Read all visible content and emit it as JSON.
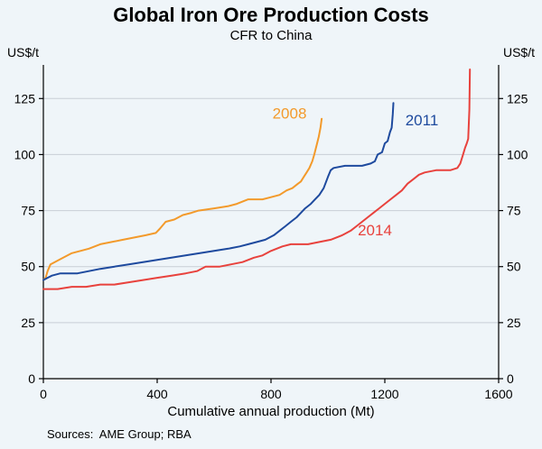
{
  "title": "Global Iron Ore Production Costs",
  "subtitle": "CFR to China",
  "y_axis": {
    "left_unit": "US$/t",
    "right_unit": "US$/t"
  },
  "footer": {
    "sources": "Sources:  AME Group; RBA"
  },
  "chart_data": {
    "type": "line",
    "title": "Global Iron Ore Production Costs",
    "subtitle": "CFR to China",
    "xlabel": "Cumulative annual production (Mt)",
    "ylabel": "US$/t",
    "xlim": [
      0,
      1600
    ],
    "ylim": [
      0,
      140
    ],
    "x_ticks": [
      0,
      400,
      800,
      1200,
      1600
    ],
    "y_ticks": [
      0,
      25,
      50,
      75,
      100,
      125
    ],
    "grid": "horizontal",
    "legend_position": "inline-labels",
    "colors": {
      "background": "#eff5f9",
      "grid": "#c8ced6",
      "axis": "#000000",
      "tick_text": "#000000"
    },
    "series": [
      {
        "name": "2008",
        "color": "#f39a2b",
        "label_pos": [
          865,
          116
        ],
        "points": [
          [
            0,
            44
          ],
          [
            8,
            45
          ],
          [
            15,
            48
          ],
          [
            25,
            51
          ],
          [
            40,
            52
          ],
          [
            70,
            54
          ],
          [
            100,
            56
          ],
          [
            130,
            57
          ],
          [
            160,
            58
          ],
          [
            200,
            60
          ],
          [
            240,
            61
          ],
          [
            280,
            62
          ],
          [
            320,
            63
          ],
          [
            360,
            64
          ],
          [
            395,
            65
          ],
          [
            410,
            67
          ],
          [
            430,
            70
          ],
          [
            460,
            71
          ],
          [
            490,
            73
          ],
          [
            520,
            74
          ],
          [
            545,
            75
          ],
          [
            600,
            76
          ],
          [
            650,
            77
          ],
          [
            680,
            78
          ],
          [
            700,
            79
          ],
          [
            720,
            80
          ],
          [
            770,
            80
          ],
          [
            800,
            81
          ],
          [
            830,
            82
          ],
          [
            855,
            84
          ],
          [
            875,
            85
          ],
          [
            895,
            87
          ],
          [
            905,
            88
          ],
          [
            915,
            90
          ],
          [
            925,
            92
          ],
          [
            935,
            94
          ],
          [
            945,
            97
          ],
          [
            952,
            100
          ],
          [
            960,
            104
          ],
          [
            968,
            108
          ],
          [
            974,
            112
          ],
          [
            978,
            116
          ]
        ]
      },
      {
        "name": "2011",
        "color": "#1e4a9e",
        "label_pos": [
          1330,
          113
        ],
        "points": [
          [
            0,
            44
          ],
          [
            15,
            45
          ],
          [
            30,
            46
          ],
          [
            60,
            47
          ],
          [
            120,
            47
          ],
          [
            160,
            48
          ],
          [
            200,
            49
          ],
          [
            250,
            50
          ],
          [
            300,
            51
          ],
          [
            350,
            52
          ],
          [
            400,
            53
          ],
          [
            450,
            54
          ],
          [
            500,
            55
          ],
          [
            550,
            56
          ],
          [
            600,
            57
          ],
          [
            650,
            58
          ],
          [
            690,
            59
          ],
          [
            720,
            60
          ],
          [
            750,
            61
          ],
          [
            780,
            62
          ],
          [
            810,
            64
          ],
          [
            830,
            66
          ],
          [
            850,
            68
          ],
          [
            870,
            70
          ],
          [
            890,
            72
          ],
          [
            905,
            74
          ],
          [
            920,
            76
          ],
          [
            940,
            78
          ],
          [
            955,
            80
          ],
          [
            970,
            82
          ],
          [
            985,
            85
          ],
          [
            1000,
            90
          ],
          [
            1010,
            93
          ],
          [
            1020,
            94
          ],
          [
            1060,
            95
          ],
          [
            1120,
            95
          ],
          [
            1150,
            96
          ],
          [
            1165,
            97
          ],
          [
            1175,
            100
          ],
          [
            1190,
            101
          ],
          [
            1200,
            105
          ],
          [
            1210,
            106
          ],
          [
            1218,
            110
          ],
          [
            1224,
            112
          ],
          [
            1228,
            118
          ],
          [
            1230,
            123
          ]
        ]
      },
      {
        "name": "2014",
        "color": "#e8423d",
        "label_pos": [
          1165,
          64
        ],
        "points": [
          [
            0,
            40
          ],
          [
            50,
            40
          ],
          [
            100,
            41
          ],
          [
            150,
            41
          ],
          [
            200,
            42
          ],
          [
            250,
            42
          ],
          [
            300,
            43
          ],
          [
            350,
            44
          ],
          [
            400,
            45
          ],
          [
            450,
            46
          ],
          [
            500,
            47
          ],
          [
            540,
            48
          ],
          [
            570,
            50
          ],
          [
            620,
            50
          ],
          [
            660,
            51
          ],
          [
            700,
            52
          ],
          [
            740,
            54
          ],
          [
            770,
            55
          ],
          [
            800,
            57
          ],
          [
            840,
            59
          ],
          [
            870,
            60
          ],
          [
            930,
            60
          ],
          [
            970,
            61
          ],
          [
            1010,
            62
          ],
          [
            1050,
            64
          ],
          [
            1080,
            66
          ],
          [
            1100,
            68
          ],
          [
            1120,
            70
          ],
          [
            1140,
            72
          ],
          [
            1160,
            74
          ],
          [
            1180,
            76
          ],
          [
            1200,
            78
          ],
          [
            1220,
            80
          ],
          [
            1240,
            82
          ],
          [
            1260,
            84
          ],
          [
            1280,
            87
          ],
          [
            1300,
            89
          ],
          [
            1320,
            91
          ],
          [
            1340,
            92
          ],
          [
            1380,
            93
          ],
          [
            1430,
            93
          ],
          [
            1455,
            94
          ],
          [
            1465,
            96
          ],
          [
            1475,
            100
          ],
          [
            1482,
            103
          ],
          [
            1488,
            105
          ],
          [
            1493,
            107
          ],
          [
            1497,
            120
          ],
          [
            1499,
            138
          ]
        ]
      }
    ]
  }
}
